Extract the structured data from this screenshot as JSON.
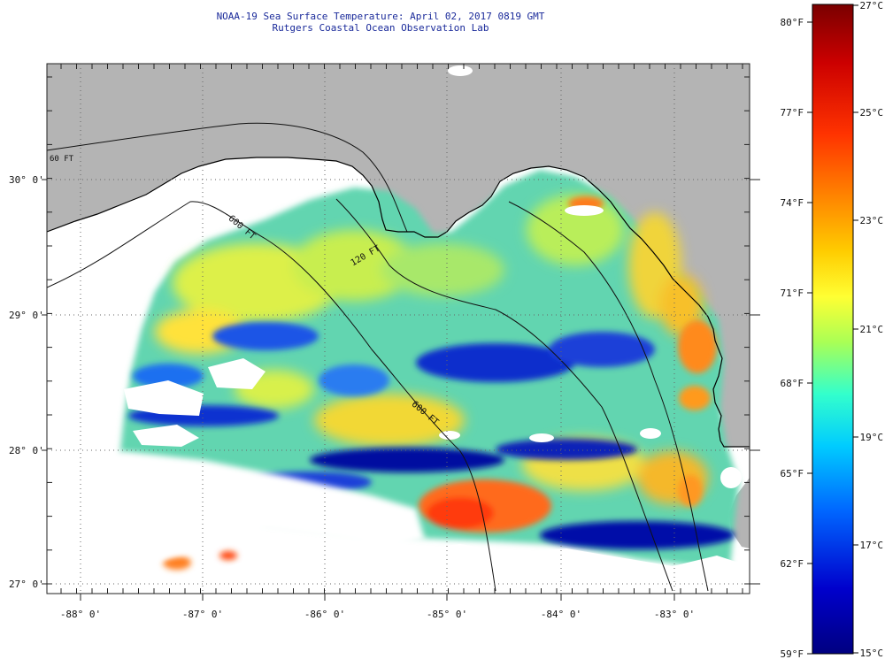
{
  "title": "NOAA-19 Sea Surface Temperature:  April 02, 2017 0819 GMT",
  "subtitle": "Rutgers Coastal Ocean Observation Lab",
  "map": {
    "latitude_labels": [
      "30° 0'",
      "29° 0'",
      "28° 0'",
      "27° 0'"
    ],
    "longitude_labels": [
      "-88° 0'",
      "-87° 0'",
      "-86° 0'",
      "-85° 0'",
      "-84° 0'",
      "-83° 0'"
    ],
    "contour_labels": [
      "120 FT",
      "600 FT",
      "600 FT",
      "60 FT"
    ],
    "colors": {
      "land": "#b4b4b4",
      "no_data": "#ffffff",
      "grid": "#666666"
    }
  },
  "colorbar": {
    "fahrenheit_labels": [
      "80°F",
      "77°F",
      "74°F",
      "71°F",
      "68°F",
      "65°F",
      "62°F",
      "59°F"
    ],
    "celsius_labels": [
      "27°C",
      "25°C",
      "23°C",
      "21°C",
      "19°C",
      "17°C",
      "15°C"
    ],
    "range_celsius": [
      15,
      27
    ],
    "colors_top_to_bottom": [
      "#7a0000",
      "#cc0000",
      "#ff3300",
      "#ff8800",
      "#ffcc00",
      "#ffff33",
      "#aaff55",
      "#33ffcc",
      "#00ccff",
      "#0066ff",
      "#0000cc",
      "#000080"
    ]
  }
}
